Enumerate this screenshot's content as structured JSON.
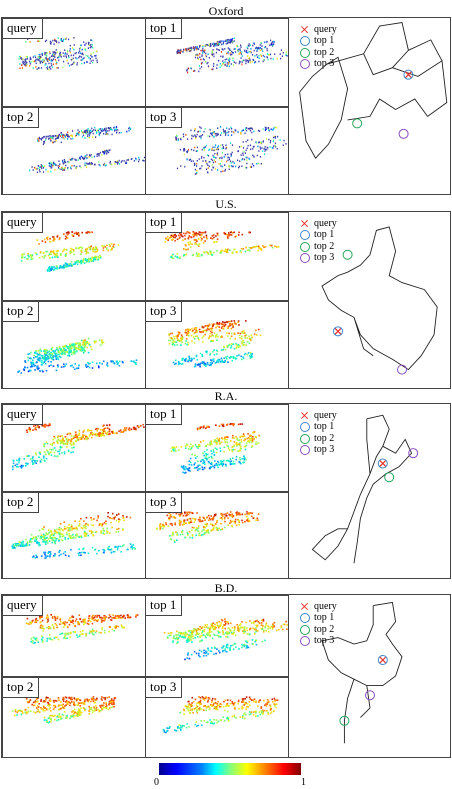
{
  "sections": [
    {
      "title": "Oxford",
      "legend": [
        "query",
        "top 1",
        "top 2",
        "top 3"
      ],
      "tiles": [
        "query",
        "top 1",
        "top 2",
        "top 3"
      ]
    },
    {
      "title": "U.S.",
      "legend": [
        "query",
        "top 1",
        "top 2",
        "top 3"
      ],
      "tiles": [
        "query",
        "top 1",
        "top 2",
        "top 3"
      ]
    },
    {
      "title": "R.A.",
      "legend": [
        "query",
        "top 1",
        "top 2",
        "top 3"
      ],
      "tiles": [
        "query",
        "top 1",
        "top 2",
        "top 3"
      ]
    },
    {
      "title": "B.D.",
      "legend": [
        "query",
        "top 1",
        "top 2",
        "top 3"
      ],
      "tiles": [
        "query",
        "top 1",
        "top 2",
        "top 3"
      ]
    }
  ],
  "colors": {
    "query": "#e8302a",
    "top1": "#3f86c8",
    "top2": "#27a65a",
    "top3": "#8a4fc0"
  },
  "colorbar": {
    "min_label": "0",
    "max_label": "1"
  }
}
